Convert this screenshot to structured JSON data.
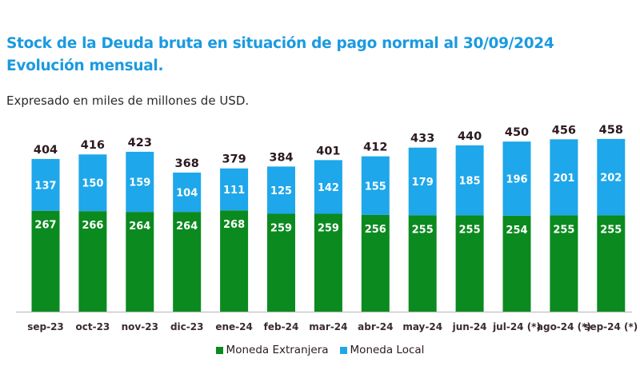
{
  "chart_data": {
    "type": "bar",
    "stacked": true,
    "title": "Stock de la Deuda bruta en situación de pago normal al 30/09/2024",
    "title_line2": "Evolución mensual.",
    "subtitle": "Expresado en miles de millones de USD.",
    "categories": [
      "sep-23",
      "oct-23",
      "nov-23",
      "dic-23",
      "ene-24",
      "feb-24",
      "mar-24",
      "abr-24",
      "may-24",
      "jun-24",
      "jul-24 (*)",
      "ago-24 (*)",
      "sep-24 (*)"
    ],
    "series": [
      {
        "name": "Moneda Extranjera",
        "color": "#0b8a1f",
        "values": [
          267,
          266,
          264,
          264,
          268,
          259,
          259,
          256,
          255,
          255,
          254,
          255,
          255
        ]
      },
      {
        "name": "Moneda Local",
        "color": "#1ea7ea",
        "values": [
          137,
          150,
          159,
          104,
          111,
          125,
          142,
          155,
          179,
          185,
          196,
          201,
          202
        ]
      }
    ],
    "totals": [
      404,
      416,
      423,
      368,
      379,
      384,
      401,
      412,
      433,
      440,
      450,
      456,
      458
    ],
    "title_color": "#1b9ae0",
    "legend": "bottom",
    "grid": false,
    "ylim": [
      0,
      480
    ]
  }
}
